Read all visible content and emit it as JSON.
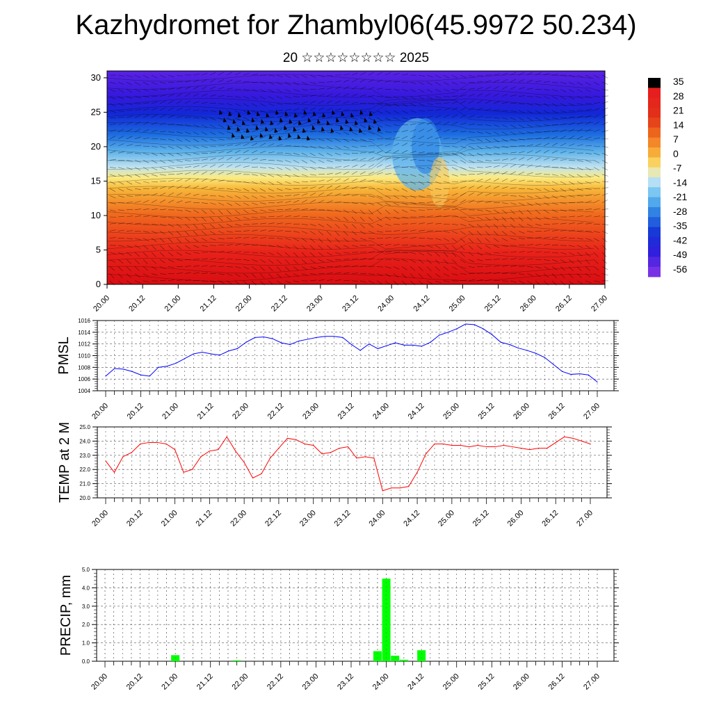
{
  "header": {
    "title": "Kazhydromet for Zhambyl06(45.9972 50.234)",
    "subtitle": "20 ☆☆☆☆☆☆☆☆ 2025"
  },
  "colors": {
    "pmsl_line": "#0000ff",
    "temp_line": "#ff0000",
    "precip_bar": "#00ff00",
    "frame": "#000000"
  },
  "chart_data": [
    {
      "type": "heatmap",
      "title": "",
      "xlabel": "",
      "ylabel": "",
      "x_tick_labels": [
        "20.00",
        "20.12",
        "21.00",
        "21.12",
        "22.00",
        "22.12",
        "23.00",
        "23.12",
        "24.00",
        "24.12",
        "25.00",
        "25.12",
        "26.00",
        "26.12",
        "27.00"
      ],
      "y_ticks": [
        0,
        5,
        10,
        15,
        20,
        25,
        30
      ],
      "ylim": [
        0,
        31
      ],
      "colorbar_labels": [
        "35",
        "28",
        "21",
        "14",
        "7",
        "0",
        "-7",
        "-14",
        "-21",
        "-28",
        "-35",
        "-42",
        "-49",
        "-56"
      ],
      "overlay": "wind barbs and streamlines"
    },
    {
      "type": "line",
      "ylabel": "PMSL",
      "x_tick_labels": [
        "20.00",
        "20.12",
        "21.00",
        "21.12",
        "22.00",
        "22.12",
        "23.00",
        "23.12",
        "24.00",
        "24.12",
        "25.00",
        "25.12",
        "26.00",
        "26.12",
        "27.00"
      ],
      "y_ticks": [
        1004,
        1006,
        1008,
        1010,
        1012,
        1014,
        1016
      ],
      "ylim": [
        1004,
        1016
      ],
      "grid": true,
      "series": [
        {
          "x": [
            0,
            3,
            6,
            9,
            12,
            15,
            18,
            21,
            24,
            27,
            30,
            33,
            36,
            39,
            42,
            45,
            48,
            51,
            54,
            57,
            60,
            63,
            66,
            69,
            72,
            75,
            78,
            81,
            84,
            87,
            90,
            93,
            96,
            99,
            102,
            105,
            108,
            111,
            114,
            117,
            120,
            123,
            126,
            129,
            132,
            135,
            138,
            141,
            144,
            147,
            150,
            153,
            156,
            159,
            162,
            165,
            168
          ],
          "values": [
            1006.5,
            1007.8,
            1007.7,
            1007.3,
            1006.7,
            1006.5,
            1008.0,
            1008.2,
            1008.7,
            1009.5,
            1010.3,
            1010.6,
            1010.3,
            1010.1,
            1010.8,
            1011.2,
            1012.3,
            1013.1,
            1013.2,
            1012.9,
            1012.2,
            1011.9,
            1012.5,
            1012.8,
            1013.1,
            1013.3,
            1013.3,
            1013.1,
            1011.9,
            1010.9,
            1012.0,
            1011.2,
            1011.7,
            1012.2,
            1011.8,
            1011.8,
            1011.6,
            1012.3,
            1013.5,
            1014.0,
            1014.6,
            1015.4,
            1015.3,
            1014.6,
            1013.6,
            1012.3,
            1011.9,
            1011.3,
            1010.9,
            1010.4,
            1009.7,
            1008.5,
            1007.3,
            1006.8,
            1006.9,
            1006.7,
            1005.5
          ]
        }
      ]
    },
    {
      "type": "line",
      "ylabel": "TEMP at 2 M",
      "x_tick_labels": [
        "20.00",
        "20.12",
        "21.00",
        "21.12",
        "22.00",
        "22.12",
        "23.00",
        "23.12",
        "24.00",
        "24.12",
        "25.00",
        "25.12",
        "26.00",
        "26.12",
        "27.00"
      ],
      "y_ticks": [
        20.0,
        21.0,
        22.0,
        23.0,
        24.0,
        25.0
      ],
      "y_tick_labels": [
        "20.0",
        "21.0",
        "22.0",
        "23.0",
        "24.0",
        "25.0"
      ],
      "ylim": [
        20.0,
        25.0
      ],
      "grid": true,
      "series": [
        {
          "x": [
            0,
            3,
            6,
            9,
            12,
            15,
            18,
            21,
            24,
            27,
            30,
            33,
            36,
            39,
            42,
            45,
            48,
            51,
            54,
            57,
            60,
            63,
            66,
            69,
            72,
            75,
            78,
            81,
            84,
            87,
            90,
            93,
            96,
            99,
            102,
            105,
            108,
            111,
            114,
            117,
            120,
            123,
            126,
            129,
            132,
            135,
            138,
            141,
            144,
            147,
            150,
            153,
            156,
            159,
            162,
            165,
            168
          ],
          "values": [
            22.6,
            21.8,
            22.9,
            23.2,
            23.8,
            23.9,
            23.9,
            23.8,
            23.4,
            21.8,
            22.0,
            22.9,
            23.3,
            23.4,
            24.3,
            23.3,
            22.5,
            21.4,
            21.7,
            22.8,
            23.5,
            24.2,
            24.1,
            23.8,
            23.7,
            23.1,
            23.2,
            23.5,
            23.6,
            22.8,
            22.9,
            22.8,
            20.5,
            20.7,
            20.7,
            20.8,
            21.8,
            23.1,
            23.8,
            23.8,
            23.7,
            23.7,
            23.6,
            23.7,
            23.6,
            23.6,
            23.7,
            23.6,
            23.5,
            23.4,
            23.5,
            23.5,
            23.9,
            24.3,
            24.2,
            24.0,
            23.8
          ]
        }
      ]
    },
    {
      "type": "bar",
      "ylabel": "PRECIP, mm",
      "x_tick_labels": [
        "20.00",
        "20.12",
        "21.00",
        "21.12",
        "22.00",
        "22.12",
        "23.00",
        "23.12",
        "24.00",
        "24.12",
        "25.00",
        "25.12",
        "26.00",
        "26.12",
        "27.00"
      ],
      "y_ticks": [
        0.0,
        1.0,
        2.0,
        3.0,
        4.0,
        5.0
      ],
      "y_tick_labels": [
        "0.0",
        "1.0",
        "2.0",
        "3.0",
        "4.0",
        "5.0"
      ],
      "ylim": [
        0.0,
        5.0
      ],
      "grid": true,
      "series": [
        {
          "x": [
            24,
            45,
            93,
            96,
            99,
            102,
            108
          ],
          "values": [
            0.33,
            0.05,
            0.55,
            4.5,
            0.3,
            0.08,
            0.6
          ]
        }
      ]
    }
  ]
}
